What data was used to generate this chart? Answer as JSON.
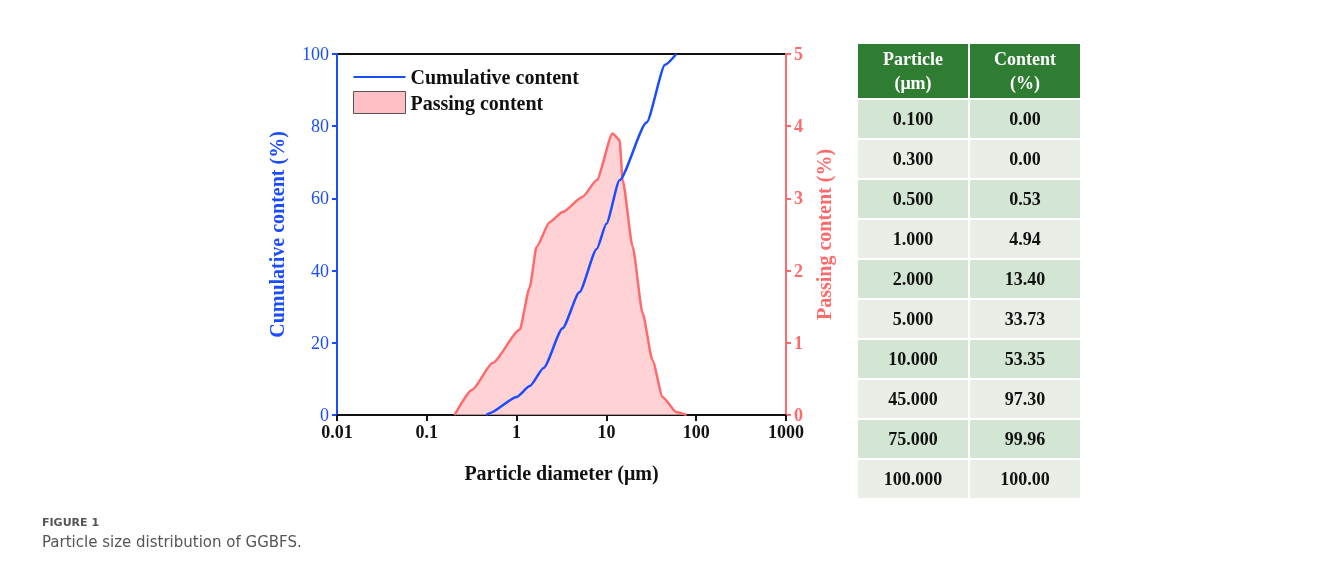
{
  "chart_data": [
    {
      "type": "line",
      "xlabel": "Particle diameter (μm)",
      "ylabel": "Cumulative content (%)",
      "y2label": "Passing content (%)",
      "log": "x",
      "xlim": [
        0.01,
        1000
      ],
      "xticks": [
        0.01,
        0.1,
        1,
        10,
        100,
        1000
      ],
      "ylim": [
        0,
        100
      ],
      "yticks": [
        0,
        20,
        40,
        60,
        80,
        100
      ],
      "y2lim": [
        0,
        5
      ],
      "y2ticks": [
        0,
        1,
        2,
        3,
        4,
        5
      ],
      "legend": "top left",
      "grid": false,
      "annotations": [
        "FIGURE 1",
        "Particle size distribution of GGBFS."
      ],
      "series": [
        {
          "name": "Cumulative content",
          "type": "line",
          "color": "#1a4dff",
          "x": [
            0.46,
            0.5,
            1,
            1.4,
            2,
            3.25,
            5,
            7.8,
            10,
            14,
            28,
            45,
            60
          ],
          "values": [
            0,
            0.5,
            5,
            8,
            13,
            24,
            34,
            46,
            53,
            65,
            81,
            97,
            100
          ]
        },
        {
          "name": "Passing content",
          "type": "area",
          "axis": "y2",
          "color": "#ff6b6b",
          "x": [
            0.204,
            0.32,
            0.54,
            1.08,
            1.4,
            1.67,
            2.33,
            3.25,
            5.4,
            7.8,
            11.7,
            14,
            15.2,
            19.6,
            25.3,
            32.6,
            42.2,
            60,
            78
          ],
          "values": [
            0,
            0.35,
            0.72,
            1.18,
            1.77,
            2.33,
            2.67,
            2.81,
            3.02,
            3.25,
            3.9,
            3.81,
            3.25,
            2.33,
            1.41,
            0.76,
            0.25,
            0.04,
            0
          ]
        }
      ]
    },
    {
      "type": "other",
      "annotations": [
        "Particle (μm)",
        "Content (%)",
        "0.100",
        "0.00",
        "0.300",
        "0.00",
        "0.500",
        "0.53",
        "1.000",
        "4.94",
        "2.000",
        "13.40",
        "5.000",
        "33.73",
        "10.000",
        "53.35",
        "45.000",
        "97.30",
        "75.000",
        "99.96",
        "100.000",
        "100.00"
      ]
    }
  ]
}
